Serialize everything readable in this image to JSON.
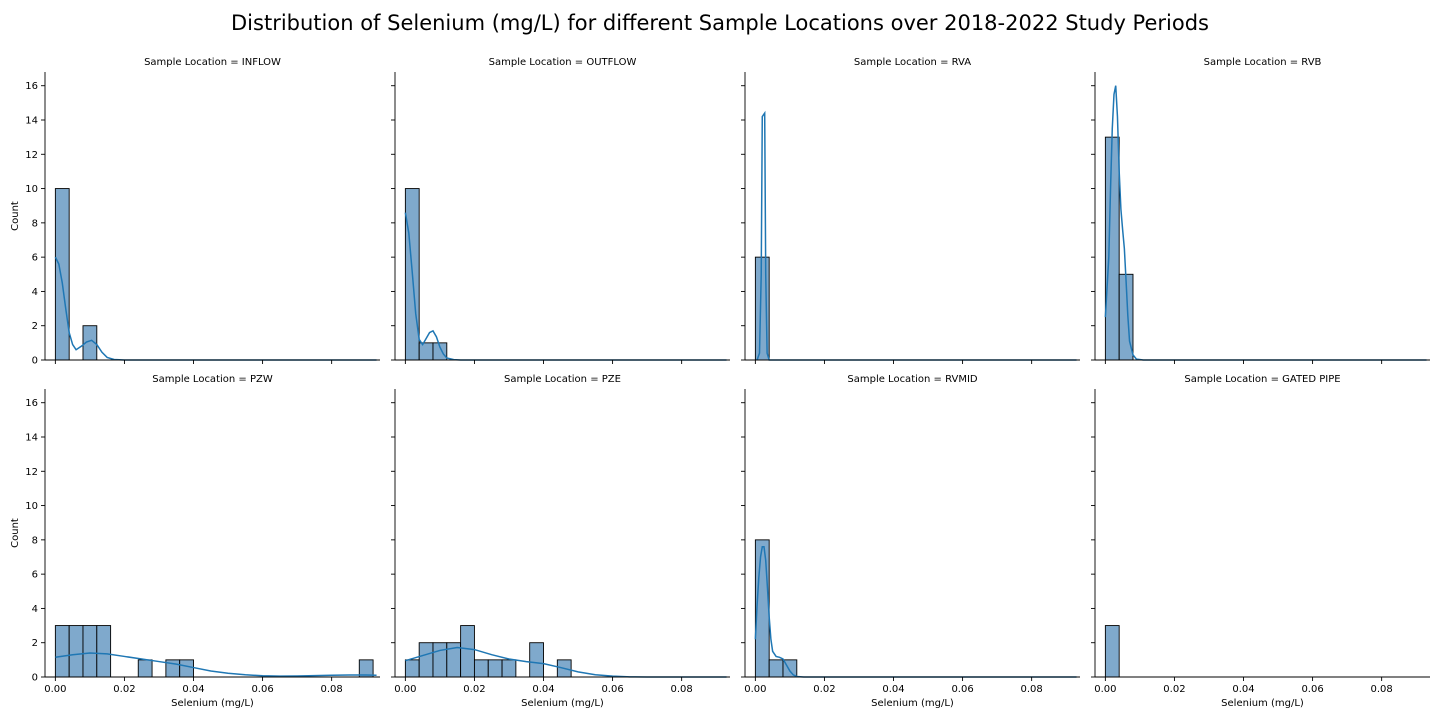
{
  "figure": {
    "title": "Distribution of Selenium (mg/L) for different Sample Locations over 2018-2022 Study Periods"
  },
  "colors": {
    "bar_fill": "#7fa9cc",
    "bar_edge": "#000000",
    "kde": "#1f77b4"
  },
  "chart_data": {
    "type": "bar",
    "subtype": "histogram-with-kde-facets",
    "xlabel": "Selenium (mg/L)",
    "ylabel": "Count",
    "xlim": [
      -0.003,
      0.094
    ],
    "ylim": [
      0,
      16.8
    ],
    "xticks": [
      0.0,
      0.02,
      0.04,
      0.06,
      0.08
    ],
    "xtick_labels": [
      "0.00",
      "0.02",
      "0.04",
      "0.06",
      "0.08"
    ],
    "yticks": [
      0,
      2,
      4,
      6,
      8,
      10,
      12,
      14,
      16
    ],
    "ytick_labels": [
      "0",
      "2",
      "4",
      "6",
      "8",
      "10",
      "12",
      "14",
      "16"
    ],
    "bin_width": 0.004,
    "panels": [
      {
        "title": "Sample Location = INFLOW",
        "bins": [
          {
            "x0": 0.0,
            "x1": 0.004,
            "count": 10
          },
          {
            "x0": 0.008,
            "x1": 0.012,
            "count": 2
          }
        ],
        "kde": [
          [
            0,
            6
          ],
          [
            0.001,
            5.6
          ],
          [
            0.002,
            4.5
          ],
          [
            0.003,
            3
          ],
          [
            0.004,
            1.6
          ],
          [
            0.005,
            0.9
          ],
          [
            0.006,
            0.6
          ],
          [
            0.0075,
            0.8
          ],
          [
            0.009,
            1.05
          ],
          [
            0.0105,
            1.15
          ],
          [
            0.012,
            0.9
          ],
          [
            0.0135,
            0.45
          ],
          [
            0.015,
            0.15
          ],
          [
            0.017,
            0.03
          ],
          [
            0.02,
            0
          ],
          [
            0.093,
            0
          ]
        ]
      },
      {
        "title": "Sample Location = OUTFLOW",
        "bins": [
          {
            "x0": 0.0,
            "x1": 0.004,
            "count": 10
          },
          {
            "x0": 0.004,
            "x1": 0.008,
            "count": 1
          },
          {
            "x0": 0.008,
            "x1": 0.012,
            "count": 1
          }
        ],
        "kde": [
          [
            0,
            8.6
          ],
          [
            0.001,
            7.4
          ],
          [
            0.002,
            5.1
          ],
          [
            0.003,
            2.7
          ],
          [
            0.004,
            1.2
          ],
          [
            0.005,
            0.9
          ],
          [
            0.006,
            1.25
          ],
          [
            0.007,
            1.6
          ],
          [
            0.008,
            1.7
          ],
          [
            0.009,
            1.35
          ],
          [
            0.01,
            0.75
          ],
          [
            0.011,
            0.35
          ],
          [
            0.012,
            0.12
          ],
          [
            0.014,
            0.02
          ],
          [
            0.016,
            0
          ],
          [
            0.093,
            0
          ]
        ]
      },
      {
        "title": "Sample Location = RVA",
        "bins": [
          {
            "x0": 0.0,
            "x1": 0.004,
            "count": 6
          }
        ],
        "kde": [
          [
            0.0005,
            0
          ],
          [
            0.0012,
            0.4
          ],
          [
            0.0017,
            5
          ],
          [
            0.002,
            14.2
          ],
          [
            0.0027,
            14.4
          ],
          [
            0.003,
            5
          ],
          [
            0.0034,
            0.4
          ],
          [
            0.004,
            0
          ],
          [
            0.093,
            0
          ]
        ]
      },
      {
        "title": "Sample Location = RVB",
        "bins": [
          {
            "x0": 0.0,
            "x1": 0.004,
            "count": 13
          },
          {
            "x0": 0.004,
            "x1": 0.008,
            "count": 5
          }
        ],
        "kde": [
          [
            0,
            2.5
          ],
          [
            0.001,
            6
          ],
          [
            0.0015,
            10
          ],
          [
            0.002,
            13.5
          ],
          [
            0.0025,
            15.5
          ],
          [
            0.003,
            16
          ],
          [
            0.0035,
            14.2
          ],
          [
            0.004,
            11
          ],
          [
            0.0045,
            8.8
          ],
          [
            0.005,
            7.6
          ],
          [
            0.0055,
            6.5
          ],
          [
            0.006,
            4.6
          ],
          [
            0.0065,
            2.6
          ],
          [
            0.007,
            1.1
          ],
          [
            0.008,
            0.3
          ],
          [
            0.009,
            0.05
          ],
          [
            0.011,
            0
          ],
          [
            0.093,
            0
          ]
        ]
      },
      {
        "title": "Sample Location = PZW",
        "bins": [
          {
            "x0": 0.0,
            "x1": 0.004,
            "count": 3
          },
          {
            "x0": 0.004,
            "x1": 0.008,
            "count": 3
          },
          {
            "x0": 0.008,
            "x1": 0.012,
            "count": 3
          },
          {
            "x0": 0.012,
            "x1": 0.016,
            "count": 3
          },
          {
            "x0": 0.024,
            "x1": 0.028,
            "count": 1
          },
          {
            "x0": 0.032,
            "x1": 0.036,
            "count": 1
          },
          {
            "x0": 0.036,
            "x1": 0.04,
            "count": 1
          },
          {
            "x0": 0.088,
            "x1": 0.092,
            "count": 1
          }
        ],
        "kde": [
          [
            0,
            1.15
          ],
          [
            0.005,
            1.3
          ],
          [
            0.01,
            1.4
          ],
          [
            0.015,
            1.35
          ],
          [
            0.02,
            1.2
          ],
          [
            0.025,
            1.05
          ],
          [
            0.03,
            0.9
          ],
          [
            0.035,
            0.75
          ],
          [
            0.04,
            0.55
          ],
          [
            0.045,
            0.35
          ],
          [
            0.05,
            0.22
          ],
          [
            0.055,
            0.13
          ],
          [
            0.06,
            0.07
          ],
          [
            0.065,
            0.05
          ],
          [
            0.07,
            0.06
          ],
          [
            0.075,
            0.08
          ],
          [
            0.08,
            0.1
          ],
          [
            0.085,
            0.12
          ],
          [
            0.09,
            0.12
          ],
          [
            0.093,
            0.1
          ]
        ]
      },
      {
        "title": "Sample Location = PZE",
        "bins": [
          {
            "x0": 0.0,
            "x1": 0.004,
            "count": 1
          },
          {
            "x0": 0.004,
            "x1": 0.008,
            "count": 2
          },
          {
            "x0": 0.008,
            "x1": 0.012,
            "count": 2
          },
          {
            "x0": 0.012,
            "x1": 0.016,
            "count": 2
          },
          {
            "x0": 0.016,
            "x1": 0.02,
            "count": 3
          },
          {
            "x0": 0.02,
            "x1": 0.024,
            "count": 1
          },
          {
            "x0": 0.024,
            "x1": 0.028,
            "count": 1
          },
          {
            "x0": 0.028,
            "x1": 0.032,
            "count": 1
          },
          {
            "x0": 0.036,
            "x1": 0.04,
            "count": 2
          },
          {
            "x0": 0.044,
            "x1": 0.048,
            "count": 1
          }
        ],
        "kde": [
          [
            0,
            0.95
          ],
          [
            0.005,
            1.25
          ],
          [
            0.01,
            1.55
          ],
          [
            0.015,
            1.72
          ],
          [
            0.02,
            1.6
          ],
          [
            0.025,
            1.3
          ],
          [
            0.03,
            1.05
          ],
          [
            0.035,
            0.9
          ],
          [
            0.04,
            0.78
          ],
          [
            0.045,
            0.55
          ],
          [
            0.05,
            0.3
          ],
          [
            0.055,
            0.13
          ],
          [
            0.06,
            0.05
          ],
          [
            0.065,
            0.01
          ],
          [
            0.07,
            0
          ],
          [
            0.093,
            0
          ]
        ]
      },
      {
        "title": "Sample Location = RVMID",
        "bins": [
          {
            "x0": 0.0,
            "x1": 0.004,
            "count": 8
          },
          {
            "x0": 0.004,
            "x1": 0.008,
            "count": 1
          },
          {
            "x0": 0.008,
            "x1": 0.012,
            "count": 1
          }
        ],
        "kde": [
          [
            0,
            2.2
          ],
          [
            0.0005,
            4.2
          ],
          [
            0.001,
            5.8
          ],
          [
            0.0015,
            7
          ],
          [
            0.002,
            7.6
          ],
          [
            0.0025,
            7.6
          ],
          [
            0.003,
            6.8
          ],
          [
            0.0035,
            5.2
          ],
          [
            0.004,
            3.5
          ],
          [
            0.0045,
            2.2
          ],
          [
            0.005,
            1.5
          ],
          [
            0.006,
            1.2
          ],
          [
            0.007,
            1.15
          ],
          [
            0.008,
            1.05
          ],
          [
            0.009,
            0.7
          ],
          [
            0.01,
            0.35
          ],
          [
            0.011,
            0.12
          ],
          [
            0.012,
            0.03
          ],
          [
            0.014,
            0
          ],
          [
            0.093,
            0
          ]
        ]
      },
      {
        "title": "Sample Location = GATED PIPE",
        "bins": [
          {
            "x0": 0.0,
            "x1": 0.004,
            "count": 3
          }
        ],
        "kde": []
      }
    ]
  }
}
